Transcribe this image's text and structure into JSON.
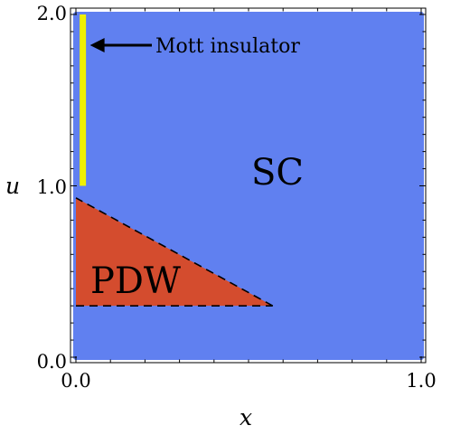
{
  "chart_data": {
    "type": "area",
    "title": "",
    "xlabel": "x",
    "ylabel": "u",
    "xlim": [
      0.0,
      1.0
    ],
    "ylim": [
      0.0,
      2.0
    ],
    "x_ticks": [
      "0.0",
      "1.0"
    ],
    "y_ticks": [
      "0.0",
      "1.0",
      "2.0"
    ],
    "grid": false,
    "regions": [
      {
        "name": "SC",
        "color": "#6080f0",
        "polygon": [
          [
            0.0,
            0.0
          ],
          [
            1.0,
            0.0
          ],
          [
            1.0,
            2.0
          ],
          [
            0.0,
            2.0
          ]
        ]
      },
      {
        "name": "PDW",
        "color": "#d44c2e",
        "polygon": [
          [
            0.0,
            0.3
          ],
          [
            0.57,
            0.3
          ],
          [
            0.0,
            0.93
          ]
        ],
        "boundary_style": "dashed"
      },
      {
        "name": "Mott insulator",
        "color": "#f0f000",
        "segment": {
          "x": 0.02,
          "y_from": 1.0,
          "y_to": 2.0
        }
      }
    ],
    "annotations": [
      {
        "text": "Mott insulator",
        "arrow_to": [
          0.02,
          1.8
        ]
      }
    ]
  }
}
